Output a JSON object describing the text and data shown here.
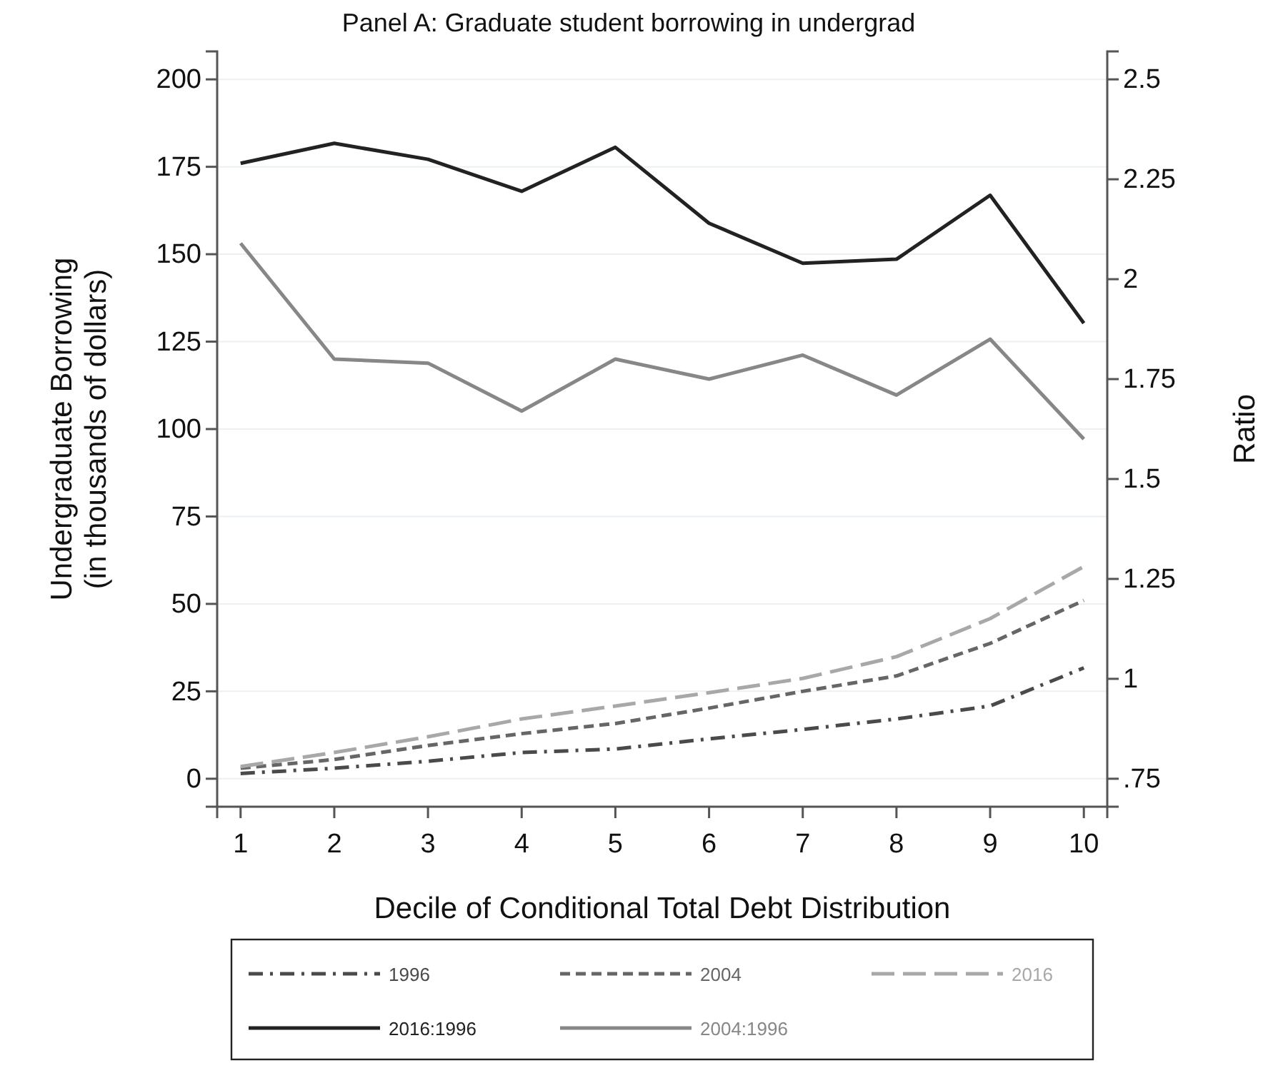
{
  "chart_data": {
    "type": "line",
    "title": "Panel A: Graduate student borrowing in undergrad",
    "xlabel": "Decile of Conditional Total Debt Distribution",
    "ylabel": "Undergraduate Borrowing\n(in thousands of dollars)",
    "y2label": "Ratio",
    "x": [
      1,
      2,
      3,
      4,
      5,
      6,
      7,
      8,
      9,
      10
    ],
    "xlim": [
      0.75,
      10.25
    ],
    "xticks": [
      1,
      2,
      3,
      4,
      5,
      6,
      7,
      8,
      9,
      10
    ],
    "ylim": [
      -8,
      208
    ],
    "yticks": [
      0,
      25,
      50,
      75,
      100,
      125,
      150,
      175,
      200
    ],
    "y2lim": [
      0.68,
      2.57
    ],
    "y2ticks": [
      {
        "value": 0.75,
        "label": ".75"
      },
      1,
      1.25,
      1.5,
      1.75,
      2,
      2.25,
      2.5
    ],
    "grid": "y",
    "legend": "bottom",
    "series": [
      {
        "name": "1996",
        "color": "#4a4a4a",
        "line_style": "dashdot",
        "values": [
          1.5,
          3,
          5,
          7.5,
          8.5,
          11.4,
          14.1,
          17.1,
          20.8,
          31.7
        ]
      },
      {
        "name": "2004",
        "color": "#666666",
        "line_style": "dashed",
        "values": [
          3,
          5.5,
          9.5,
          12.9,
          15.8,
          20.2,
          25,
          29.4,
          38.7,
          51
        ]
      },
      {
        "name": "2016",
        "color": "#a8a8a8",
        "line_style": "longdash",
        "values": [
          3.5,
          7.5,
          12,
          17.1,
          20.8,
          24.6,
          28.7,
          34.9,
          45.8,
          60.7
        ]
      },
      {
        "name": "2016:1996",
        "color": "#222222",
        "line_style": "solid",
        "axis": "y2",
        "values": [
          2.29,
          2.34,
          2.3,
          2.22,
          2.33,
          2.14,
          2.04,
          2.05,
          2.21,
          1.89
        ]
      },
      {
        "name": "2004:1996",
        "color": "#878787",
        "line_style": "solid",
        "axis": "y2",
        "values": [
          2.09,
          1.8,
          1.79,
          1.67,
          1.8,
          1.75,
          1.81,
          1.71,
          1.85,
          1.6
        ]
      }
    ]
  }
}
